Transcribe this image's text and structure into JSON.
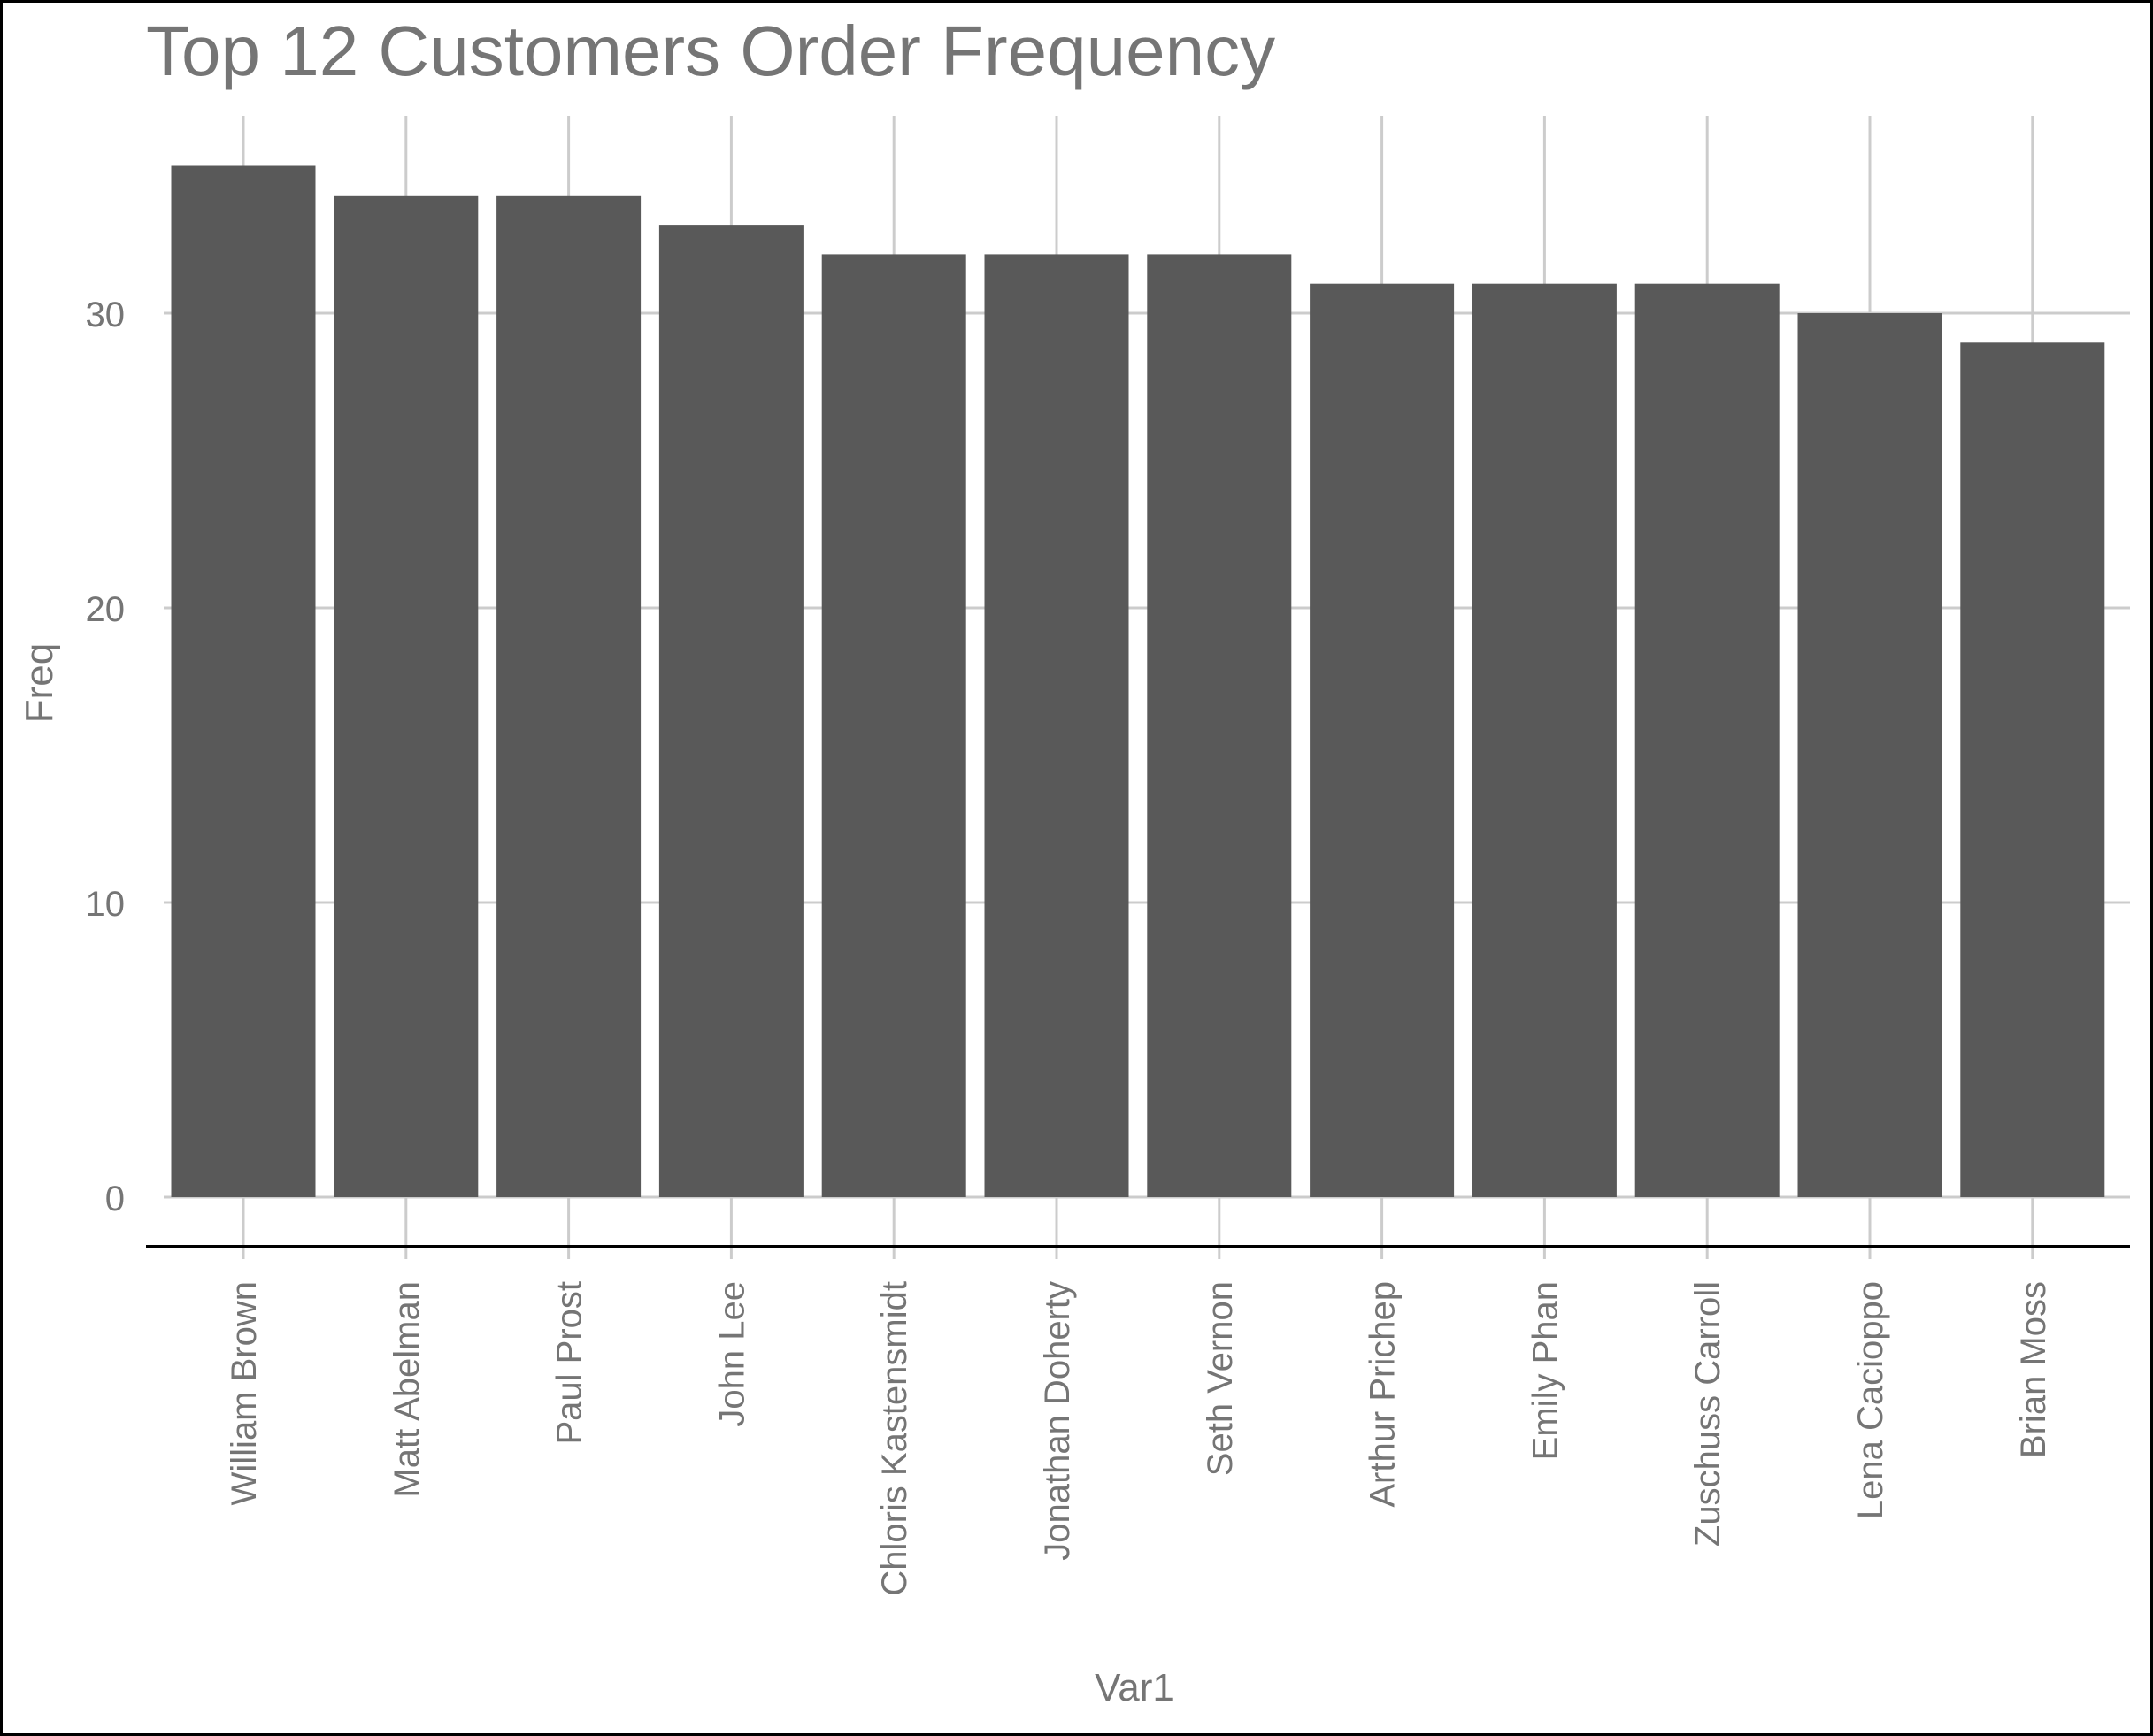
{
  "chart_data": {
    "type": "bar",
    "title": "Top 12 Customers Order Frequency",
    "xlabel": "Var1",
    "ylabel": "Freq",
    "categories": [
      "William Brown",
      "Matt Abelman",
      "Paul Prost",
      "John Lee",
      "Chloris Kastensmidt",
      "Jonathan Doherty",
      "Seth Vernon",
      "Arthur Prichep",
      "Emily Phan",
      "Zuschuss Carroll",
      "Lena Cacioppo",
      "Brian Moss"
    ],
    "values": [
      35,
      34,
      34,
      33,
      32,
      32,
      32,
      31,
      31,
      31,
      30,
      29
    ],
    "yticks": [
      0,
      10,
      20,
      30
    ],
    "grid": true,
    "legend": "none",
    "colors": {
      "bar": "#595959",
      "grid": "#cccccc",
      "text": "#757575",
      "axis_line": "#000000"
    }
  }
}
